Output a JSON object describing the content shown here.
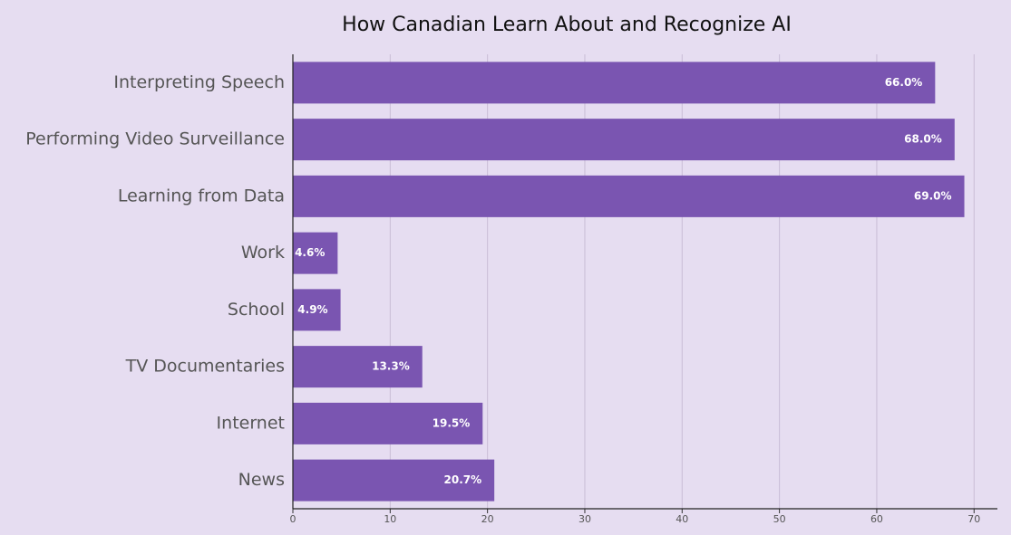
{
  "chart_data": {
    "type": "bar",
    "orientation": "horizontal",
    "title": "How Canadian Learn About and Recognize AI",
    "categories": [
      "Interpreting Speech",
      "Performing Video Surveillance",
      "Learning from Data",
      "Work",
      "School",
      "TV Documentaries",
      "Internet",
      "News"
    ],
    "values": [
      66.0,
      68.0,
      69.0,
      4.6,
      4.9,
      13.3,
      19.5,
      20.7
    ],
    "value_labels": [
      "66.0%",
      "68.0%",
      "69.0%",
      "4.6%",
      "4.9%",
      "13.3%",
      "19.5%",
      "20.7%"
    ],
    "color": "#7a55b1",
    "xlim": [
      0,
      71
    ],
    "xticks": [
      0,
      10,
      20,
      30,
      40,
      50,
      60,
      70
    ],
    "grid": true
  }
}
